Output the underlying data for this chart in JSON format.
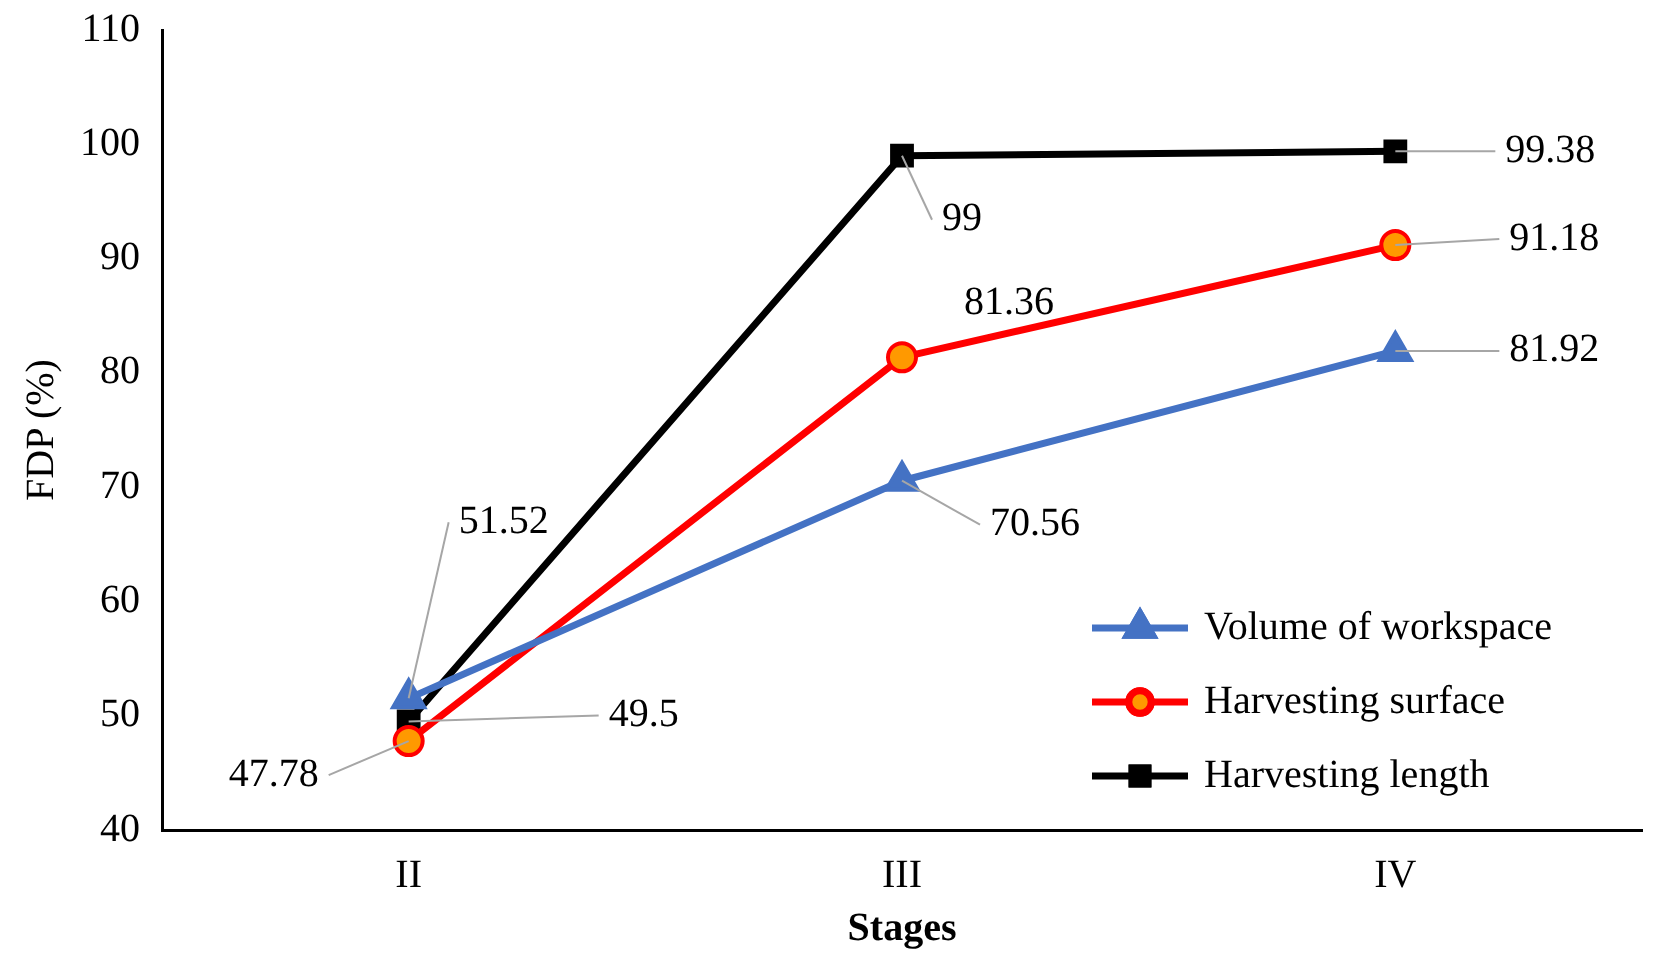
{
  "chart_data": {
    "type": "line",
    "xlabel": "Stages",
    "ylabel": "FDP (%)",
    "categories": [
      "II",
      "III",
      "IV"
    ],
    "series": [
      {
        "name": "Volume of workspace",
        "color": "#4472c4",
        "marker": "triangle",
        "values": [
          51.52,
          70.56,
          81.92
        ],
        "value_labels": [
          null,
          "70.56",
          "81.92"
        ]
      },
      {
        "name": "Harvesting surface",
        "color": "#ff0000",
        "marker": "circle",
        "values": [
          47.78,
          81.36,
          91.18
        ],
        "value_labels": [
          "47.78",
          "81.36",
          "91.18"
        ]
      },
      {
        "name": "Harvesting length",
        "color": "#000000",
        "marker": "square",
        "values": [
          49.5,
          99,
          99.38
        ],
        "value_labels": [
          null,
          "99",
          "99.38"
        ]
      }
    ],
    "annotations": [
      {
        "text": "51.52",
        "x": "II",
        "y": 51.52
      },
      {
        "text": "49.5",
        "x": "II",
        "y": 49.5
      }
    ],
    "ylim": [
      40,
      110
    ],
    "yticks": [
      40,
      50,
      60,
      70,
      80,
      90,
      100,
      110
    ],
    "grid": false,
    "legend": "bottom right",
    "line_style": "solid"
  }
}
